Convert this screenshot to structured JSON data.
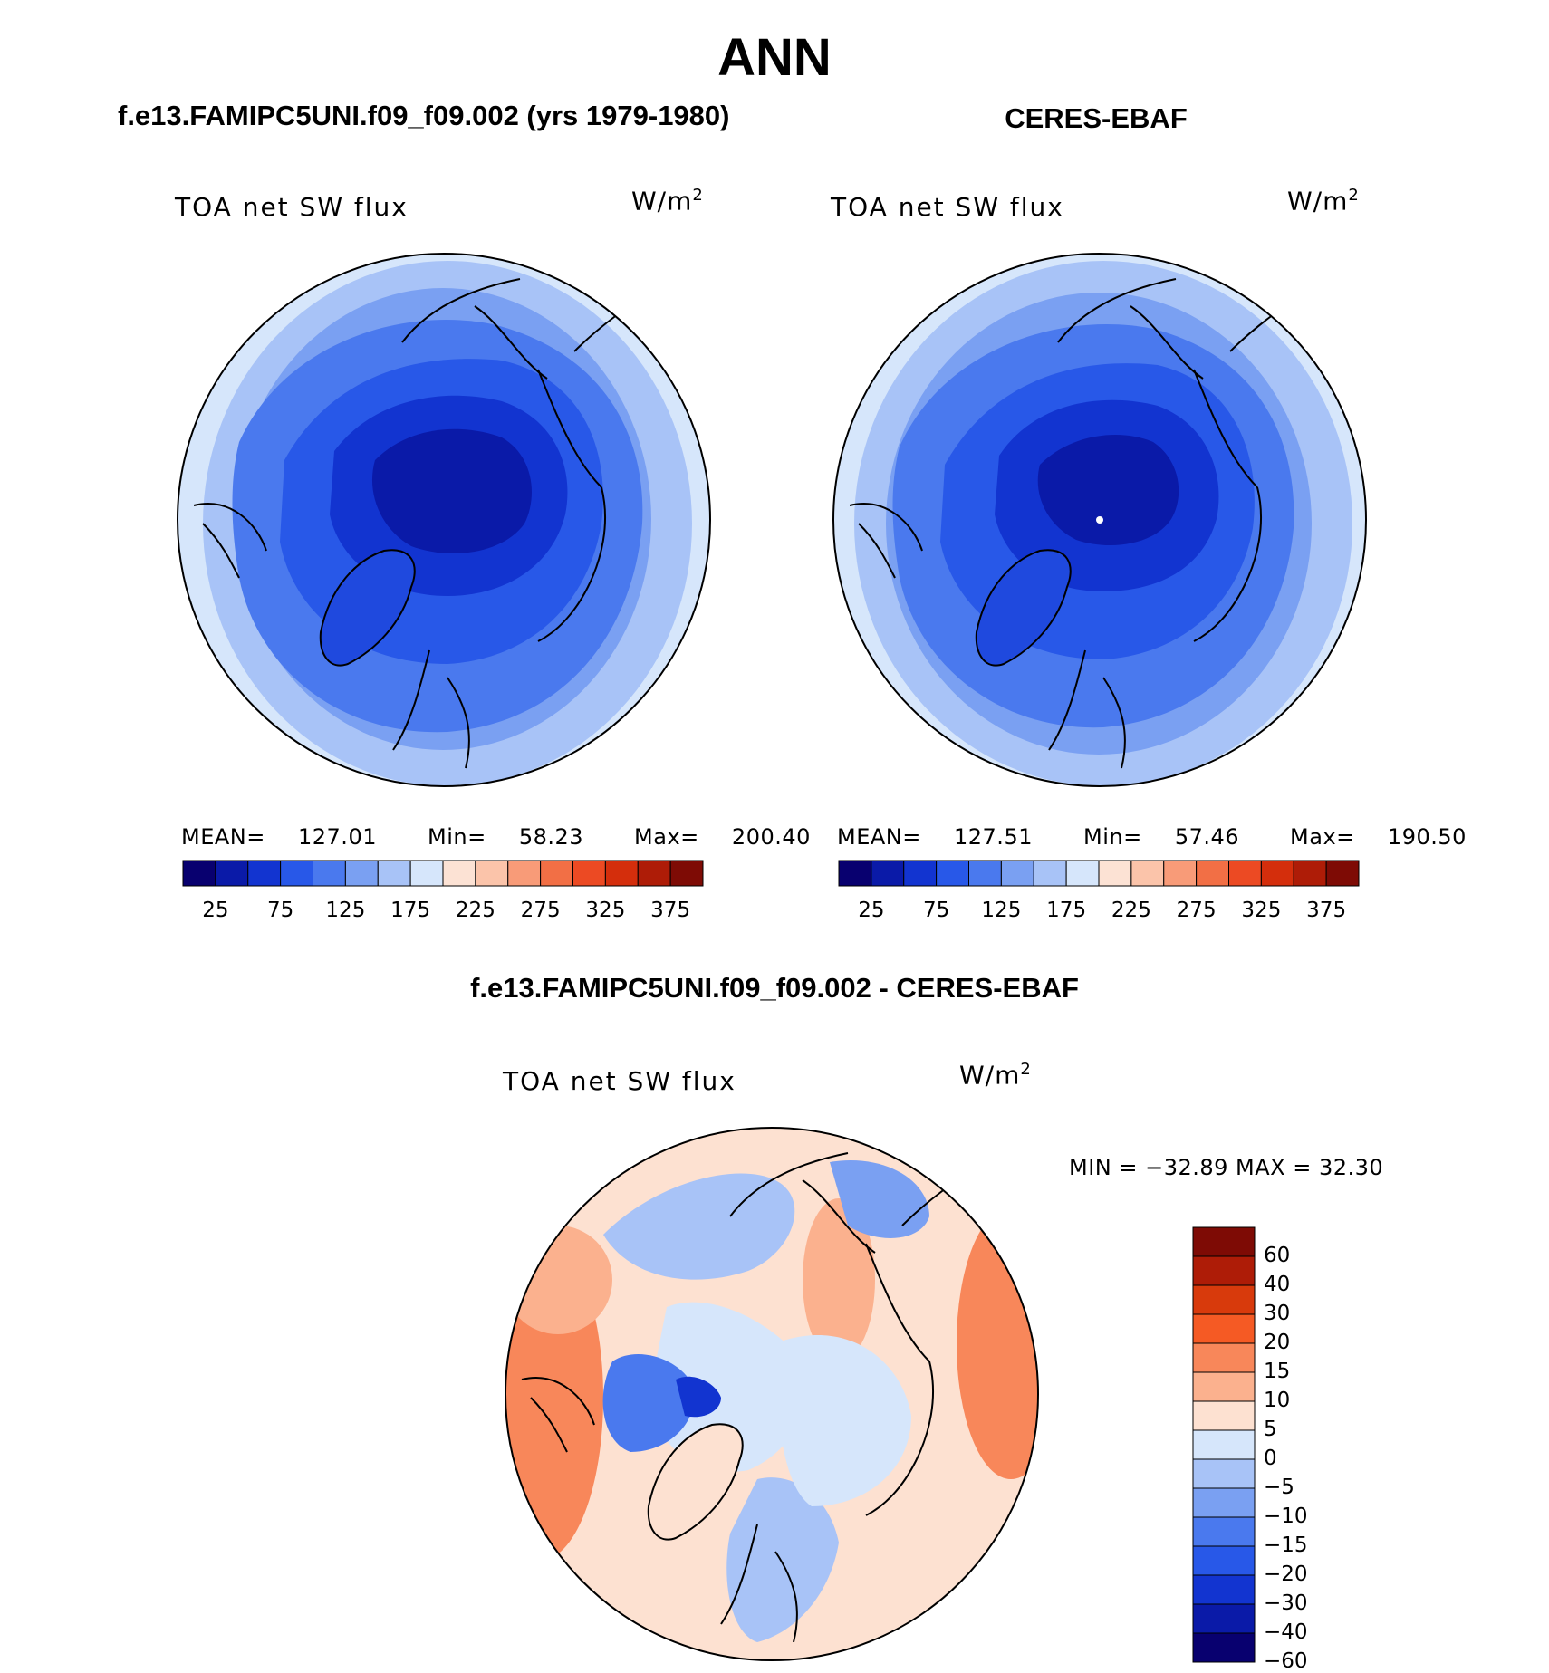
{
  "title": "ANN",
  "colors": {
    "seq": [
      "#08006f",
      "#0a1aa8",
      "#1234d0",
      "#2858e8",
      "#4a79ee",
      "#7aa0f2",
      "#a8c3f7",
      "#d6e6fb",
      "#fce2d4",
      "#fbc4aa",
      "#f89b78",
      "#f26f45",
      "#ec4a23",
      "#d42e0c",
      "#ae1c07",
      "#7e0b05"
    ],
    "diff": [
      "#7e0b05",
      "#ae1c07",
      "#d83a0c",
      "#f55a24",
      "#f8875a",
      "#fbb18e",
      "#fde1d1",
      "#d6e6fb",
      "#a8c3f7",
      "#7aa0f2",
      "#4a79ee",
      "#2858e8",
      "#1234d0",
      "#0a1aa8",
      "#08006f"
    ]
  },
  "panels": [
    {
      "title": "f.e13.FAMIPC5UNI.f09_f09.002 (yrs 1979-1980)",
      "variable": "TOA net SW flux",
      "units": "W/m",
      "units_exp": "2",
      "stats": {
        "mean_label": "MEAN=",
        "mean": "127.01",
        "min_label": "Min=",
        "min": "58.23",
        "max_label": "Max=",
        "max": "200.40"
      }
    },
    {
      "title": "CERES-EBAF",
      "variable": "TOA net SW flux",
      "units": "W/m",
      "units_exp": "2",
      "stats": {
        "mean_label": "MEAN=",
        "mean": "127.51",
        "min_label": "Min=",
        "min": "57.46",
        "max_label": "Max=",
        "max": "190.50"
      }
    }
  ],
  "colorbar_ticks": [
    "25",
    "75",
    "125",
    "175",
    "225",
    "275",
    "325",
    "375"
  ],
  "diff_panel": {
    "title": "f.e13.FAMIPC5UNI.f09_f09.002 - CERES-EBAF",
    "variable": "TOA net SW flux",
    "units": "W/m",
    "units_exp": "2",
    "minmax": "MIN = −32.89 MAX =   32.30",
    "ticks": [
      "60",
      "40",
      "30",
      "20",
      "15",
      "10",
      "5",
      "0",
      "−5",
      "−10",
      "−15",
      "−20",
      "−30",
      "−40",
      "−60"
    ]
  }
}
